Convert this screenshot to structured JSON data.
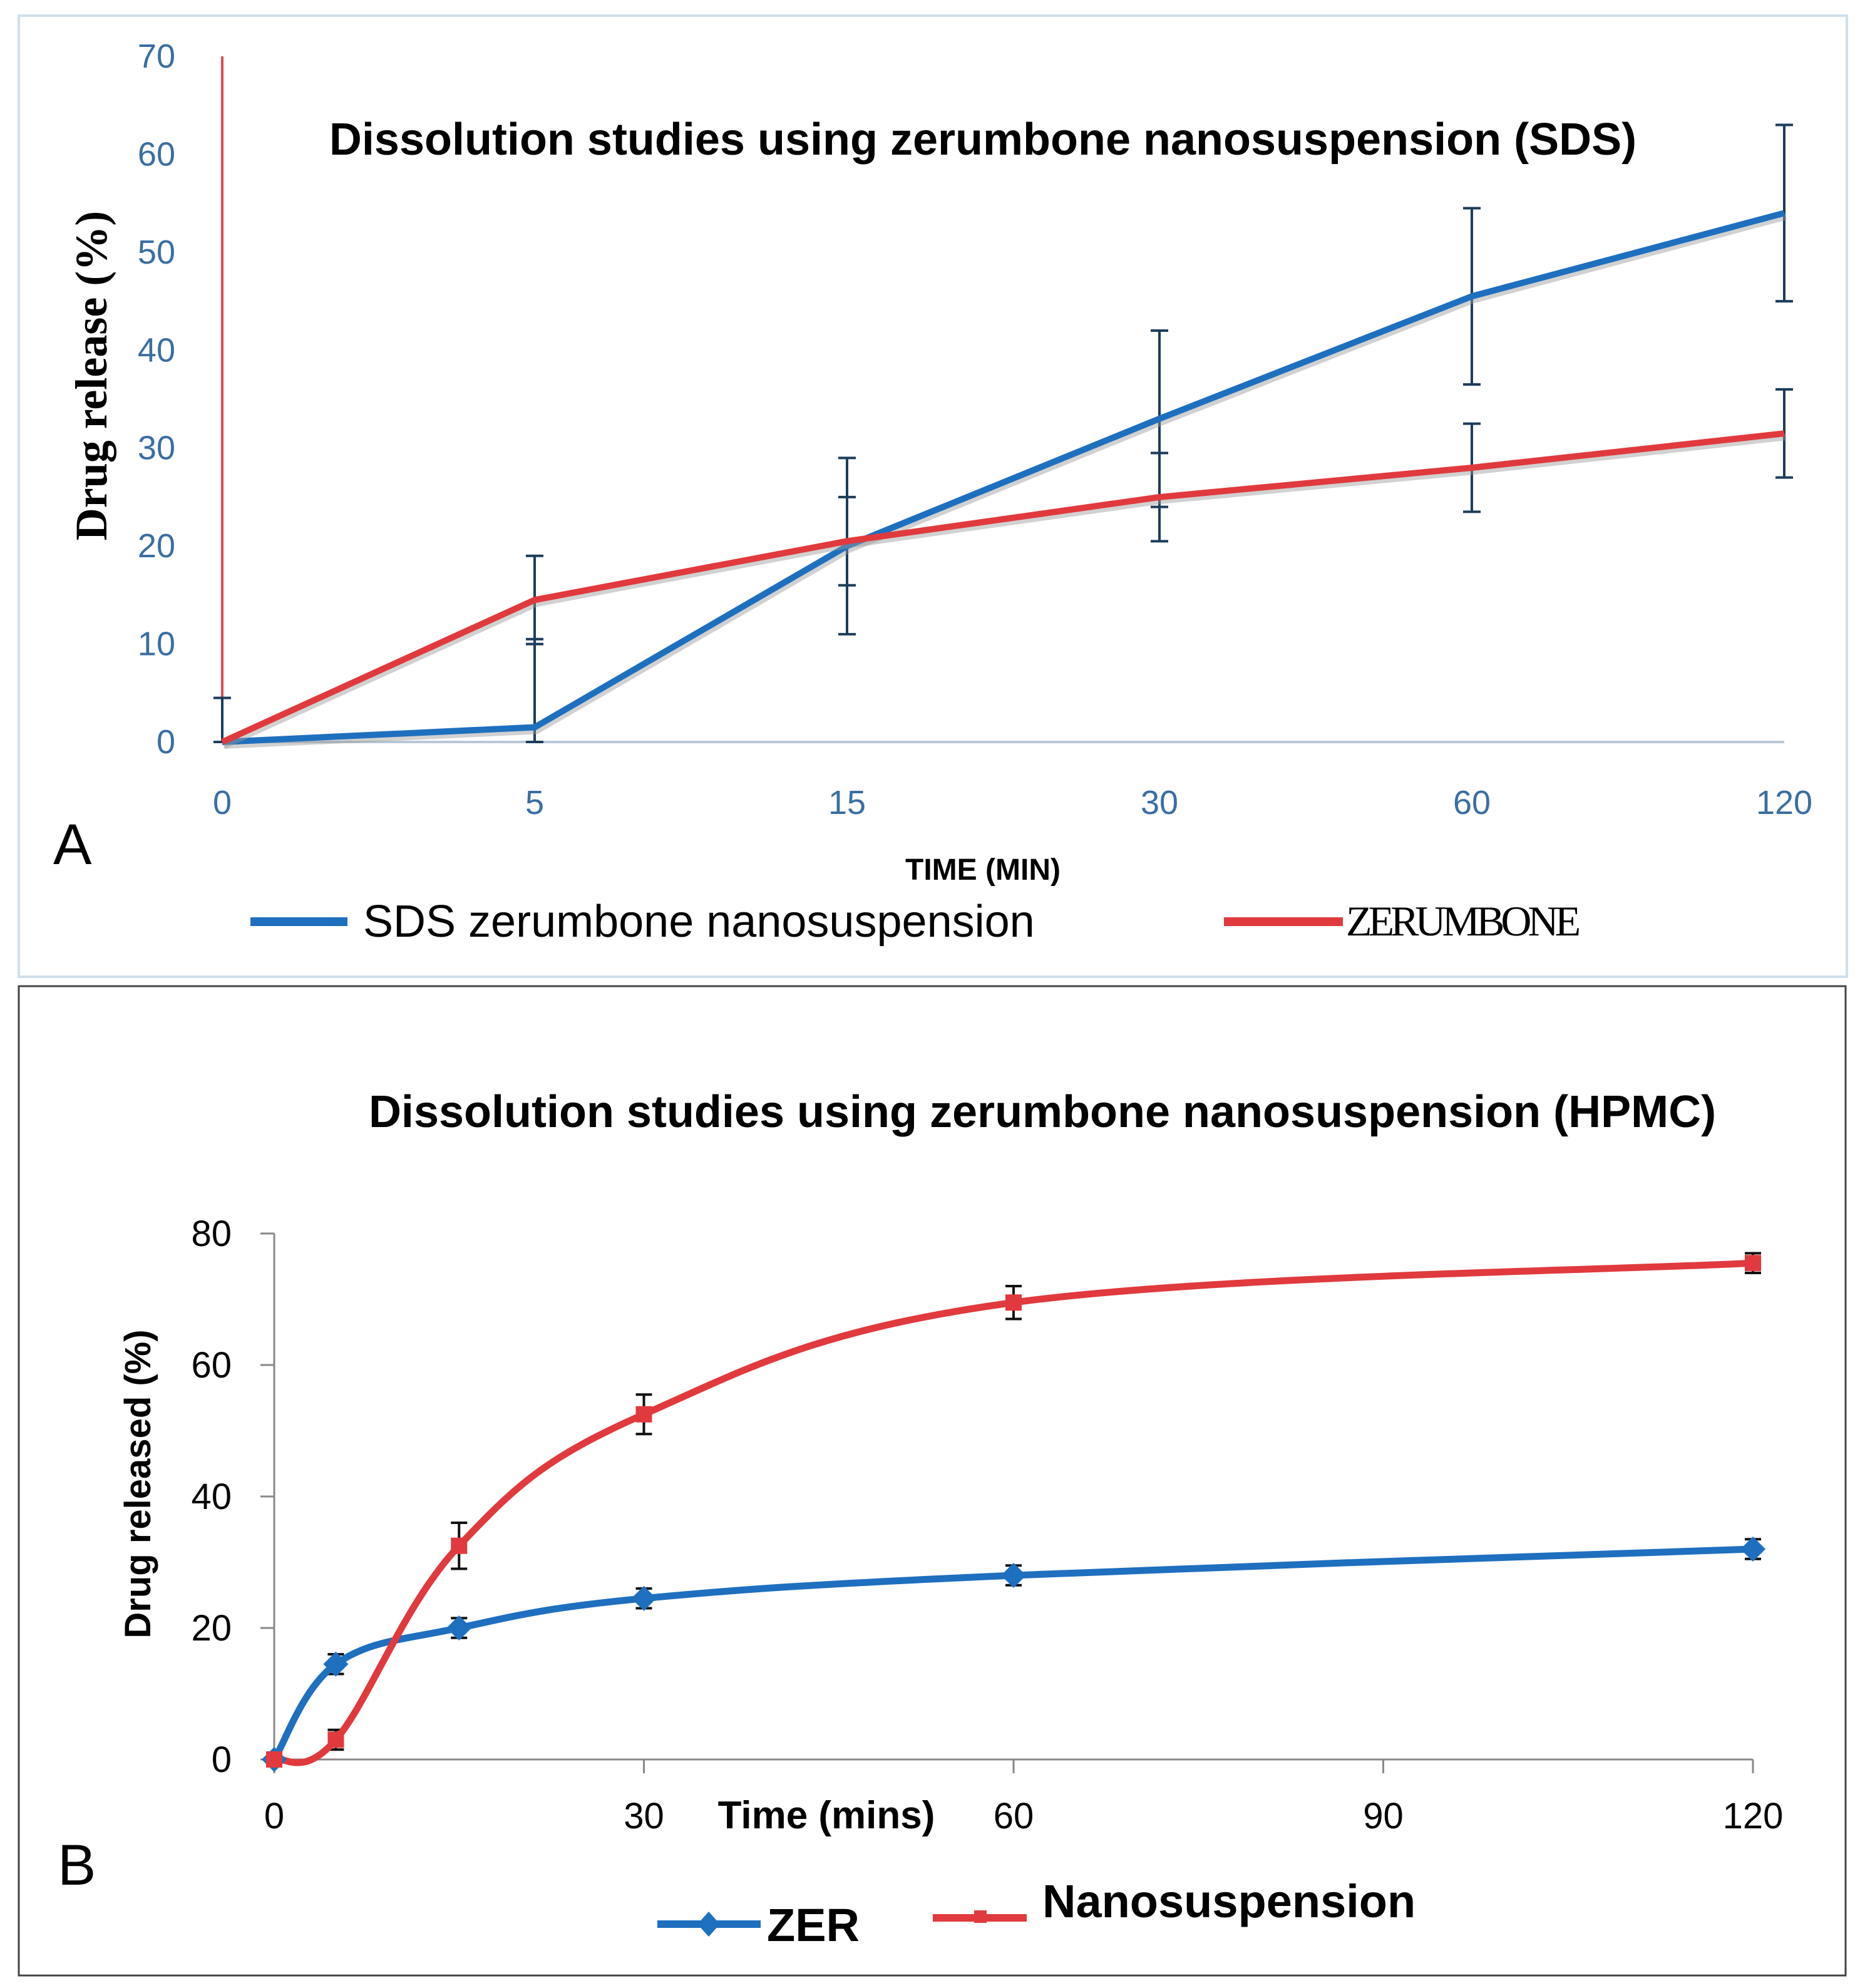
{
  "chart_data": [
    {
      "panel": "A",
      "type": "line",
      "title": "Dissolution studies using zerumbone nanosuspension (SDS)",
      "xlabel": "TIME (MIN)",
      "ylabel": "Drug release (%)",
      "categories": [
        "0",
        "5",
        "15",
        "30",
        "60",
        "120"
      ],
      "ylim": [
        0,
        70
      ],
      "yticks": [
        0,
        10,
        20,
        30,
        40,
        50,
        60,
        70
      ],
      "series": [
        {
          "name": "SDS zerumbone nanosuspension",
          "color": "#1f6fbf",
          "values": [
            0,
            1.5,
            20,
            33,
            45.5,
            54
          ],
          "error": [
            0,
            9,
            9,
            9,
            9,
            9
          ]
        },
        {
          "name": "ZERUMBONE",
          "color": "#e03a3e",
          "values": [
            0,
            14.5,
            20.5,
            25,
            28,
            31.5
          ],
          "error": [
            4.5,
            4.5,
            4.5,
            4.5,
            4.5,
            4.5
          ]
        }
      ]
    },
    {
      "panel": "B",
      "type": "line",
      "title": "Dissolution studies using zerumbone nanosuspension (HPMC)",
      "xlabel": "Time (mins)",
      "ylabel": "Drug released (%)",
      "xlim": [
        0,
        120
      ],
      "xticks": [
        0,
        30,
        60,
        90,
        120
      ],
      "ylim": [
        0,
        80
      ],
      "yticks": [
        0,
        20,
        40,
        60,
        80
      ],
      "series": [
        {
          "name": "ZER",
          "color": "#1f6fbf",
          "marker": "diamond",
          "x": [
            0,
            5,
            15,
            30,
            60,
            120
          ],
          "values": [
            0,
            14.5,
            20,
            24.5,
            28,
            32
          ],
          "error": [
            0.5,
            1.5,
            1.5,
            1.5,
            1.5,
            1.5
          ]
        },
        {
          "name": "Nanosuspension",
          "color": "#e03a3e",
          "marker": "square",
          "x": [
            0,
            5,
            15,
            30,
            60,
            120
          ],
          "values": [
            0,
            3,
            32.5,
            52.5,
            69.5,
            75.5
          ],
          "error": [
            0.5,
            1.5,
            3.5,
            3,
            2.5,
            1.5
          ]
        }
      ]
    }
  ]
}
